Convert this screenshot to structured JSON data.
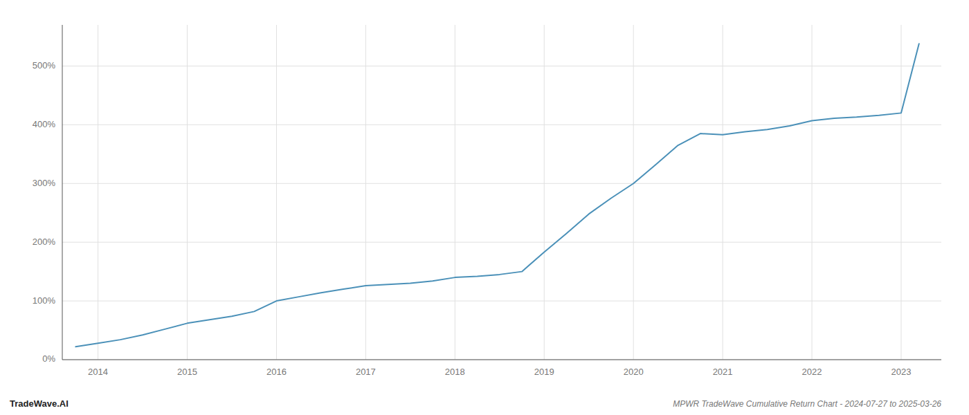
{
  "chart_data": {
    "type": "line",
    "title": "MPWR TradeWave Cumulative Return Chart - 2024-07-27 to 2025-03-26",
    "annotations": [
      "TradeWave.AI"
    ],
    "color": "#4a90b8",
    "grid": true,
    "x": [
      2013.75,
      2014.0,
      2014.25,
      2014.5,
      2014.75,
      2015.0,
      2015.25,
      2015.5,
      2015.75,
      2016.0,
      2016.25,
      2016.5,
      2016.75,
      2017.0,
      2017.25,
      2017.5,
      2017.75,
      2018.0,
      2018.25,
      2018.5,
      2018.75,
      2019.0,
      2019.25,
      2019.5,
      2019.75,
      2020.0,
      2020.25,
      2020.5,
      2020.75,
      2021.0,
      2021.25,
      2021.5,
      2021.75,
      2022.0,
      2022.25,
      2022.5,
      2022.75,
      2023.0,
      2023.2
    ],
    "values": [
      22,
      28,
      34,
      42,
      52,
      62,
      68,
      74,
      82,
      100,
      107,
      114,
      120,
      126,
      128,
      130,
      134,
      140,
      142,
      145,
      150,
      183,
      215,
      248,
      275,
      300,
      332,
      365,
      385,
      383,
      388,
      392,
      398,
      407,
      411,
      413,
      416,
      420,
      538
    ],
    "xlim": [
      2013.6,
      2023.45
    ],
    "xticks": [
      2014,
      2015,
      2016,
      2017,
      2018,
      2019,
      2020,
      2021,
      2022,
      2023
    ],
    "ylim": [
      0,
      570
    ],
    "yticks": [
      {
        "value": 0,
        "label": "0%"
      },
      {
        "value": 100,
        "label": "100%"
      },
      {
        "value": 200,
        "label": "200%"
      },
      {
        "value": 300,
        "label": "300%"
      },
      {
        "value": 400,
        "label": "400%"
      },
      {
        "value": 500,
        "label": "500%"
      }
    ]
  }
}
